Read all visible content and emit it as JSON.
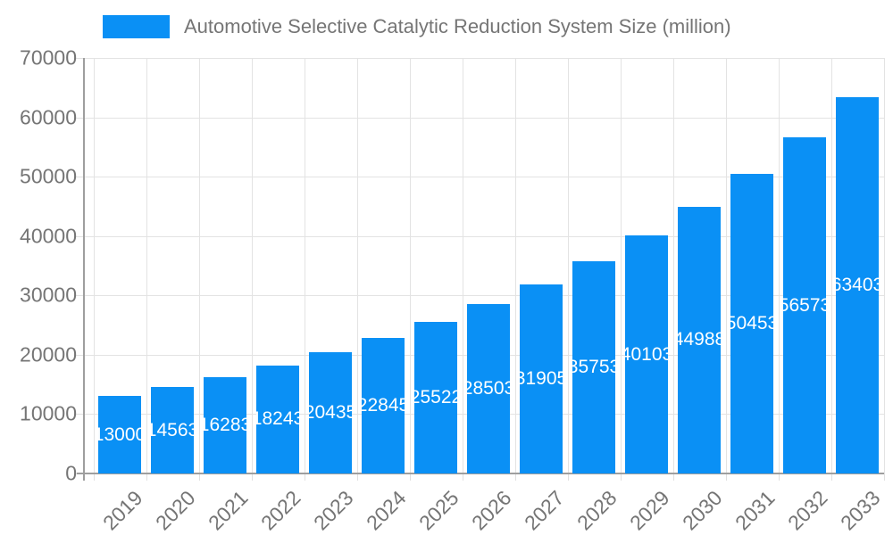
{
  "chart_data": {
    "type": "bar",
    "legend_label": "Automotive Selective Catalytic Reduction System Size (million)",
    "legend_position": "top",
    "categories": [
      "2019",
      "2020",
      "2021",
      "2022",
      "2023",
      "2024",
      "2025",
      "2026",
      "2027",
      "2028",
      "2029",
      "2030",
      "2031",
      "2032",
      "2033"
    ],
    "values": [
      13000,
      14563,
      16283,
      18243,
      20435,
      22845,
      25522,
      28503,
      31905,
      35753,
      40103,
      44988,
      50453,
      56573,
      63403
    ],
    "value_labels": [
      "13000",
      "14563",
      "16283",
      "18243",
      "20435",
      "22845",
      "25522",
      "28503",
      "31905",
      "35753",
      "40103",
      "44988",
      "50453",
      "56573",
      "63403"
    ],
    "ylim": [
      0,
      70000
    ],
    "yticks": [
      0,
      10000,
      20000,
      30000,
      40000,
      50000,
      60000,
      70000
    ],
    "ytick_labels": [
      "0",
      "10000",
      "20000",
      "30000",
      "40000",
      "50000",
      "60000",
      "70000"
    ],
    "grid": true,
    "colors": {
      "bar": "#0a90f5",
      "axis_text": "#757575",
      "gridline": "#e3e3e3",
      "axis_line": "#9e9e9e",
      "value_label": "#ffffff",
      "background": "#ffffff"
    }
  }
}
